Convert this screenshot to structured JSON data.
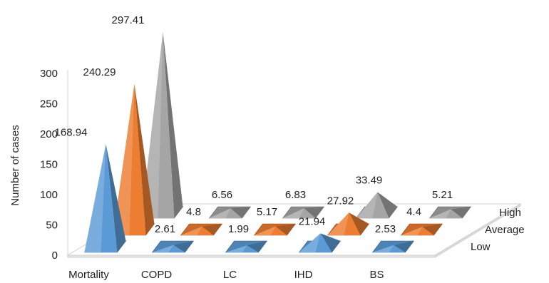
{
  "chart_data": {
    "type": "bar",
    "subtype": "3d-pyramid",
    "title": "",
    "xlabel": "",
    "ylabel": "Number of cases",
    "ylim": [
      0,
      300
    ],
    "yticks": [
      "0",
      "50",
      "100",
      "150",
      "200",
      "250",
      "300"
    ],
    "categories": [
      "Mortality",
      "COPD",
      "LC",
      "IHD",
      "BS"
    ],
    "series": [
      {
        "name": "Low",
        "values": [
          168.94,
          2.61,
          1.99,
          21.94,
          2.53
        ],
        "labels": [
          "168.94",
          "2.61",
          "1.99",
          "21.94",
          "2.53"
        ],
        "color": "#5B9BD5"
      },
      {
        "name": "Average",
        "values": [
          240.29,
          4.8,
          5.17,
          27.92,
          4.4
        ],
        "labels": [
          "240.29",
          "4.8",
          "5.17",
          "27.92",
          "4.4"
        ],
        "color": "#ED7D31"
      },
      {
        "name": "High",
        "values": [
          297.41,
          6.56,
          6.83,
          33.49,
          5.21
        ],
        "labels": [
          "297.41",
          "6.56",
          "6.83",
          "33.49",
          "5.21"
        ],
        "color": "#A5A5A5"
      }
    ],
    "grid": false,
    "legend": "depth-axis-right"
  }
}
